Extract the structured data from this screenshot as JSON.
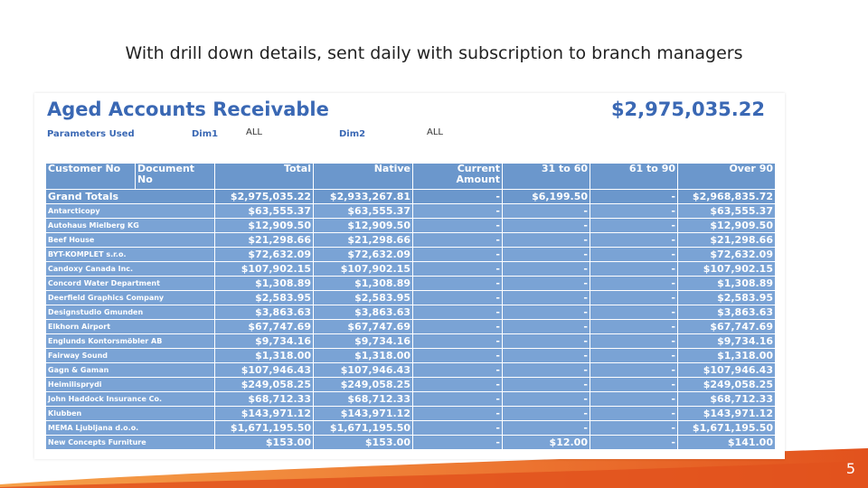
{
  "slide": {
    "title": "With drill down details, sent daily with subscription to branch managers",
    "page_number": "5"
  },
  "colors": {
    "title_blue": "#3a68b4",
    "header_blue": "#6b97cc",
    "row_blue": "#7aa3d5",
    "footer_orange": "#e2521d",
    "footer_light": "#f6a24a"
  },
  "report": {
    "title": "Aged Accounts Receivable",
    "total": "$2,975,035.22",
    "params": {
      "label_used": "Parameters Used",
      "dim1_label": "Dim1",
      "dim1_value": "ALL",
      "dim2_label": "Dim2",
      "dim2_value": "ALL"
    },
    "columns": [
      "Customer No",
      "Document No",
      "Total",
      "Native",
      "Current Amount",
      "31 to 60",
      "61 to 90",
      "Over 90"
    ],
    "grand_totals": {
      "label": "Grand Totals",
      "values": [
        "$2,975,035.22",
        "$2,933,267.81",
        "-",
        "$6,199.50",
        "-",
        "$2,968,835.72"
      ]
    },
    "rows": [
      {
        "name": "Antarcticopy",
        "values": [
          "$63,555.37",
          "$63,555.37",
          "-",
          "-",
          "-",
          "$63,555.37"
        ]
      },
      {
        "name": "Autohaus Mielberg KG",
        "values": [
          "$12,909.50",
          "$12,909.50",
          "-",
          "-",
          "-",
          "$12,909.50"
        ]
      },
      {
        "name": "Beef House",
        "values": [
          "$21,298.66",
          "$21,298.66",
          "-",
          "-",
          "-",
          "$21,298.66"
        ]
      },
      {
        "name": "BYT-KOMPLET s.r.o.",
        "values": [
          "$72,632.09",
          "$72,632.09",
          "-",
          "-",
          "-",
          "$72,632.09"
        ]
      },
      {
        "name": "Candoxy Canada Inc.",
        "values": [
          "$107,902.15",
          "$107,902.15",
          "-",
          "-",
          "-",
          "$107,902.15"
        ]
      },
      {
        "name": "Concord Water Department",
        "values": [
          "$1,308.89",
          "$1,308.89",
          "-",
          "-",
          "-",
          "$1,308.89"
        ]
      },
      {
        "name": "Deerfield Graphics Company",
        "values": [
          "$2,583.95",
          "$2,583.95",
          "-",
          "-",
          "-",
          "$2,583.95"
        ]
      },
      {
        "name": "Designstudio Gmunden",
        "values": [
          "$3,863.63",
          "$3,863.63",
          "-",
          "-",
          "-",
          "$3,863.63"
        ]
      },
      {
        "name": "Elkhorn Airport",
        "values": [
          "$67,747.69",
          "$67,747.69",
          "-",
          "-",
          "-",
          "$67,747.69"
        ]
      },
      {
        "name": "Englunds Kontorsmöbler AB",
        "values": [
          "$9,734.16",
          "$9,734.16",
          "-",
          "-",
          "-",
          "$9,734.16"
        ]
      },
      {
        "name": "Fairway Sound",
        "values": [
          "$1,318.00",
          "$1,318.00",
          "-",
          "-",
          "-",
          "$1,318.00"
        ]
      },
      {
        "name": "Gagn & Gaman",
        "values": [
          "$107,946.43",
          "$107,946.43",
          "-",
          "-",
          "-",
          "$107,946.43"
        ]
      },
      {
        "name": "Heimilisprydi",
        "values": [
          "$249,058.25",
          "$249,058.25",
          "-",
          "-",
          "-",
          "$249,058.25"
        ]
      },
      {
        "name": "John Haddock Insurance Co.",
        "values": [
          "$68,712.33",
          "$68,712.33",
          "-",
          "-",
          "-",
          "$68,712.33"
        ]
      },
      {
        "name": "Klubben",
        "values": [
          "$143,971.12",
          "$143,971.12",
          "-",
          "-",
          "-",
          "$143,971.12"
        ]
      },
      {
        "name": "MEMA Ljubljana d.o.o.",
        "values": [
          "$1,671,195.50",
          "$1,671,195.50",
          "-",
          "-",
          "-",
          "$1,671,195.50"
        ]
      },
      {
        "name": "New Concepts Furniture",
        "values": [
          "$153.00",
          "$153.00",
          "-",
          "$12.00",
          "-",
          "$141.00"
        ]
      }
    ]
  }
}
